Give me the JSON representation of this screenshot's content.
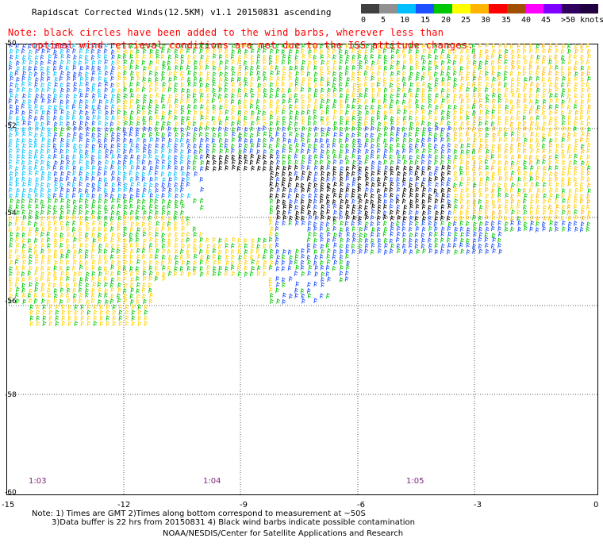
{
  "title": "Rapidscat Corrected Winds(12.5KM) v1.1 20150831 ascending",
  "note_line1": "Note: black circles have been added to the wind barbs, wherever less than",
  "note_line2": "optimal wind retrieval conditions are met due to the ISS attitude changes.",
  "colorbar": {
    "labels": [
      "0",
      "5",
      "10",
      "15",
      "20",
      "25",
      "30",
      "35",
      "40",
      "45",
      ">50 knots"
    ],
    "colors": [
      "#404040",
      "#808080",
      "#00bfff",
      "#1e3cff",
      "#00c800",
      "#ffff00",
      "#ffb400",
      "#ff0000",
      "#a05000",
      "#ff00ff",
      "#8000ff",
      "#3c0080",
      "#200040"
    ]
  },
  "x_axis_labels": [
    "-15",
    "-12",
    "-9",
    "-6",
    "-3",
    "0"
  ],
  "y_axis_labels": [
    "-50",
    "-52",
    "-54",
    "-56",
    "-58",
    "-60"
  ],
  "time_labels": [
    "1:03",
    "1:04",
    "1:05"
  ],
  "footnotes": {
    "line1": "Note: 1) Times are GMT 2)Times along bottom correspond to measurement at ~50S",
    "line2": "3)Data buffer is 22 hrs from 20150831 4) Black wind barbs indicate possible contamination",
    "line3": "NOAA/NESDIS/Center for Satellite Applications and Research"
  }
}
